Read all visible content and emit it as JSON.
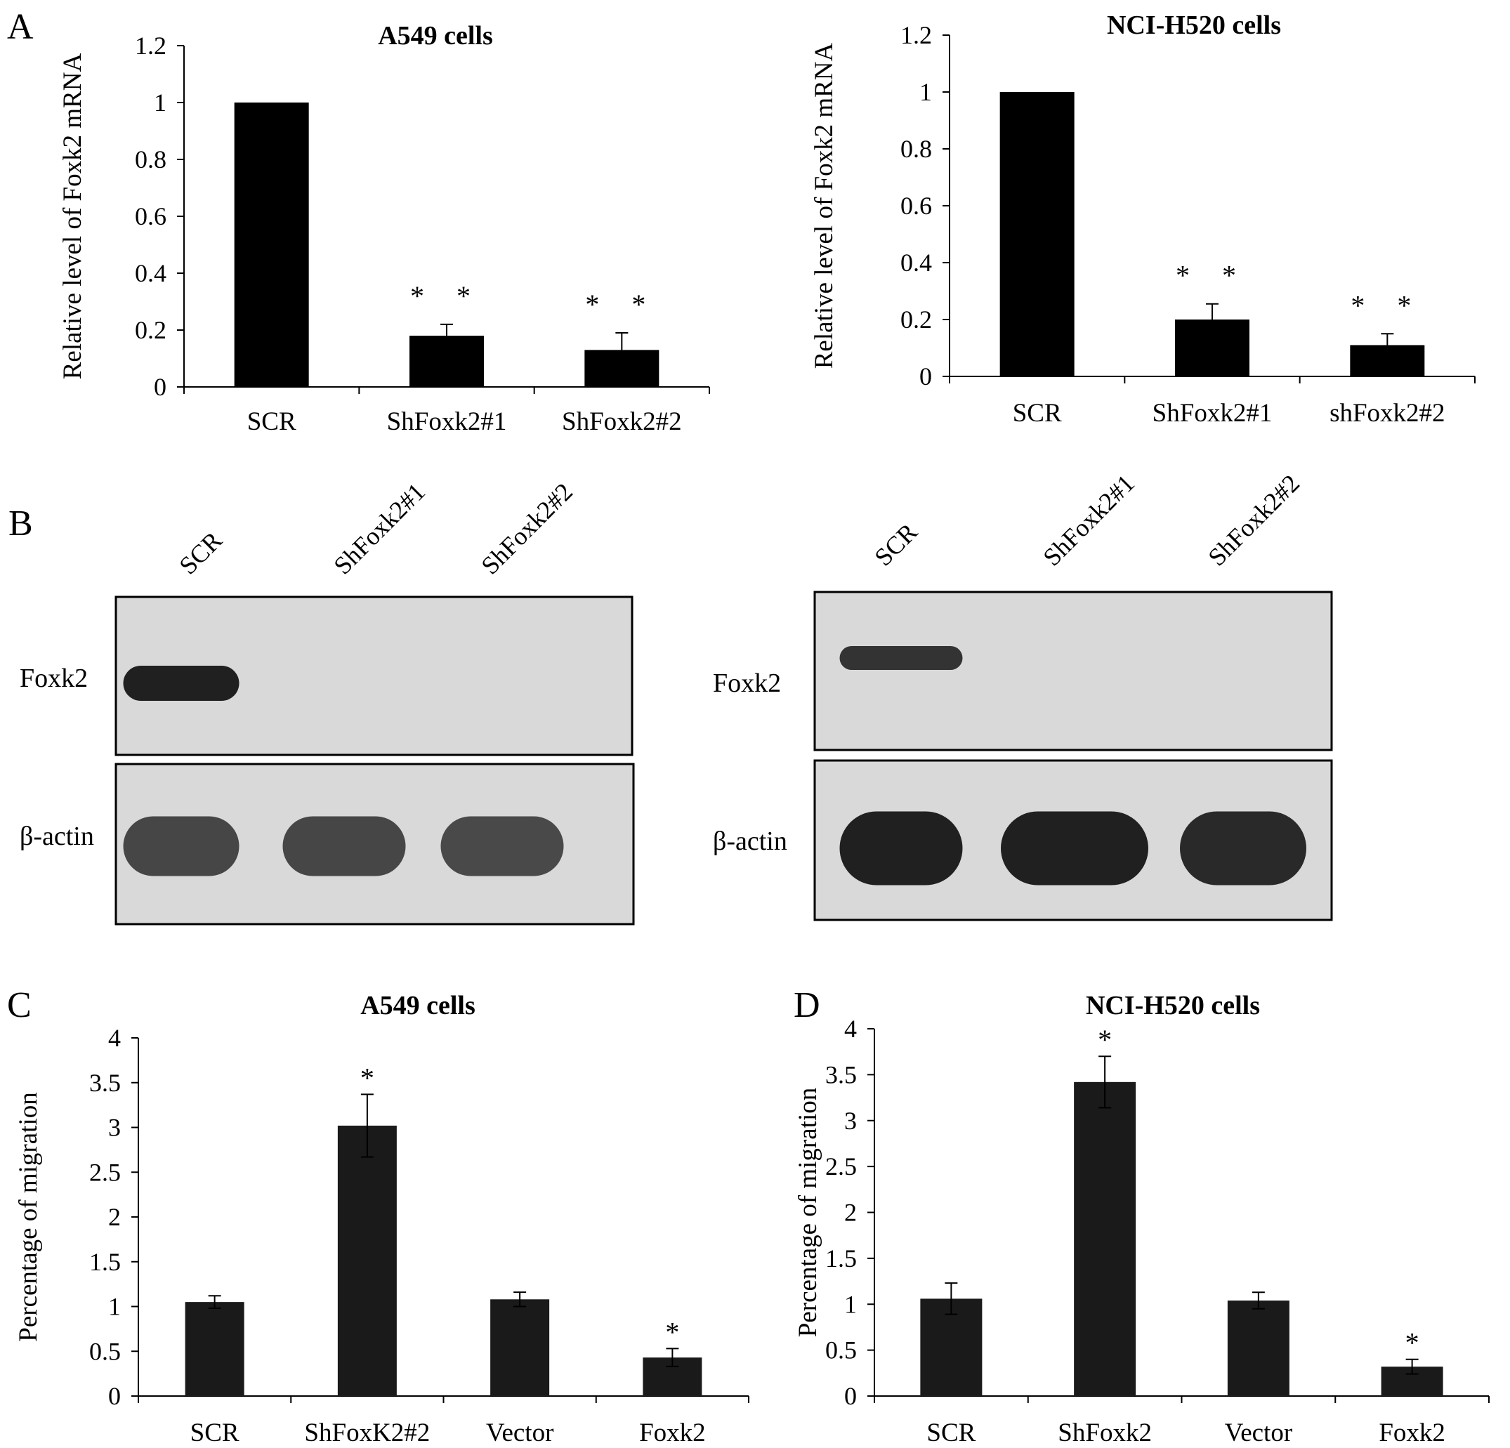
{
  "panels": {
    "A": "A",
    "B": "B",
    "C": "C",
    "D": "D"
  },
  "colors": {
    "bar": "#000000",
    "bar_dark": "#1a1a1a",
    "blot_bg": "#d9d9d9",
    "band": "#202020"
  },
  "chart_data": [
    {
      "type": "bar",
      "title": "A549 cells",
      "ylabel": "Relative level of Foxk2 mRNA",
      "xlabel": "",
      "categories": [
        "SCR",
        "ShFoxk2#1",
        "ShFoxk2#2"
      ],
      "values": [
        1.0,
        0.18,
        0.13
      ],
      "errors": [
        0.0,
        0.04,
        0.06
      ],
      "annotations": [
        "",
        "* *",
        "* *"
      ],
      "ylim": [
        0,
        1.2
      ],
      "ticks": [
        "0",
        "0.2",
        "0.4",
        "0.6",
        "0.8",
        "1",
        "1.2"
      ],
      "grid": false
    },
    {
      "type": "bar",
      "title": "NCI-H520 cells",
      "ylabel": "Relative level of Foxk2 mRNA",
      "xlabel": "",
      "categories": [
        "SCR",
        "ShFoxk2#1",
        "shFoxk2#2"
      ],
      "values": [
        1.0,
        0.2,
        0.11
      ],
      "errors": [
        0.0,
        0.055,
        0.04
      ],
      "annotations": [
        "",
        "* *",
        "* *"
      ],
      "ylim": [
        0,
        1.2
      ],
      "ticks": [
        "0",
        "0.2",
        "0.4",
        "0.6",
        "0.8",
        "1",
        "1.2"
      ],
      "grid": false
    },
    {
      "type": "bar",
      "title": "A549 cells",
      "ylabel": "Percentage of migration",
      "xlabel": "",
      "categories": [
        "SCR",
        "ShFoxK2#2",
        "Vector",
        "Foxk2"
      ],
      "values": [
        1.05,
        3.02,
        1.08,
        0.43
      ],
      "errors": [
        0.07,
        0.35,
        0.08,
        0.1
      ],
      "annotations": [
        "",
        "*",
        "",
        "*"
      ],
      "ylim": [
        0,
        4
      ],
      "ticks": [
        "0",
        "0.5",
        "1",
        "1.5",
        "2",
        "2.5",
        "3",
        "3.5",
        "4"
      ],
      "grid": false
    },
    {
      "type": "bar",
      "title": "NCI-H520 cells",
      "ylabel": "Percentage of migration",
      "xlabel": "",
      "categories": [
        "SCR",
        "ShFoxk2",
        "Vector",
        "Foxk2"
      ],
      "values": [
        1.06,
        3.42,
        1.04,
        0.32
      ],
      "errors": [
        0.17,
        0.28,
        0.09,
        0.08
      ],
      "annotations": [
        "",
        "*",
        "",
        "*"
      ],
      "ylim": [
        0,
        4
      ],
      "ticks": [
        "0",
        "0.5",
        "1",
        "1.5",
        "2",
        "2.5",
        "3",
        "3.5",
        "4"
      ],
      "grid": false
    }
  ],
  "blots": [
    {
      "lanes": [
        "SCR",
        "ShFoxk2#1",
        "ShFoxk2#2"
      ],
      "rows": [
        {
          "label": "Foxk2",
          "band_intensity": [
            1.0,
            0.0,
            0.0
          ]
        },
        {
          "label": "β-actin",
          "band_intensity": [
            0.8,
            0.8,
            0.78
          ]
        }
      ]
    },
    {
      "lanes": [
        "SCR",
        "ShFoxk2#1",
        "ShFoxk2#2"
      ],
      "rows": [
        {
          "label": "Foxk2",
          "band_intensity": [
            0.9,
            0.0,
            0.0
          ]
        },
        {
          "label": "β-actin",
          "band_intensity": [
            1.0,
            1.0,
            0.95
          ]
        }
      ]
    }
  ]
}
